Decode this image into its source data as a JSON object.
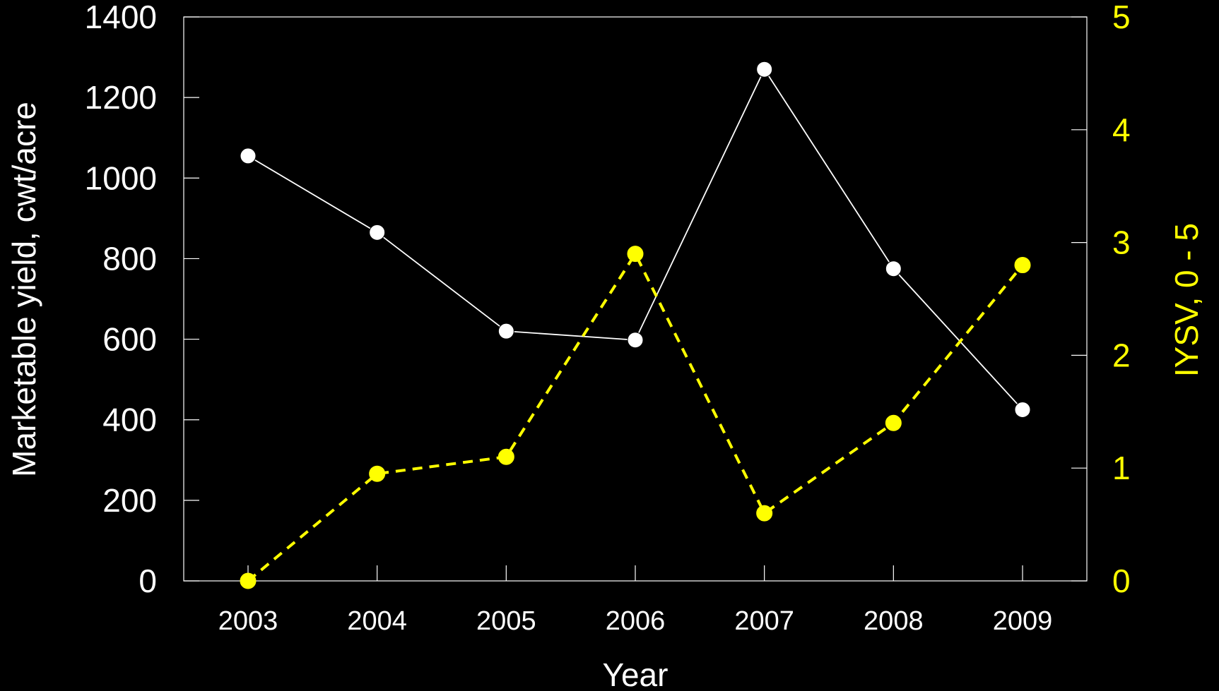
{
  "chart_data": {
    "type": "line",
    "x": [
      2003,
      2004,
      2005,
      2006,
      2007,
      2008,
      2009
    ],
    "x_tick_labels": [
      "2003",
      "2004",
      "2005",
      "2006",
      "2007",
      "2008",
      "2009"
    ],
    "xlabel": "Year",
    "ylabel_left": "Marketable yield, cwt/acre",
    "ylabel_right": "IYSV,  0 - 5",
    "ylim_left": [
      0,
      1400
    ],
    "yticks_left": [
      "0",
      "200",
      "400",
      "600",
      "800",
      "1000",
      "1200",
      "1400"
    ],
    "ylim_right": [
      0,
      5
    ],
    "yticks_right": [
      "0",
      "1",
      "2",
      "3",
      "4",
      "5"
    ],
    "grid": false,
    "series": [
      {
        "axis": "left",
        "color": "#ffffff",
        "line_style": "solid",
        "values": [
          1055,
          865,
          620,
          598,
          1270,
          775,
          425
        ]
      },
      {
        "axis": "right",
        "color": "#ffff00",
        "line_style": "dashed",
        "values": [
          0,
          0.95,
          1.1,
          2.9,
          0.6,
          1.4,
          2.8
        ]
      }
    ],
    "colors": {
      "background": "#000000",
      "frame": "#ffffff",
      "left_axis_text": "#ffffff",
      "right_axis_text": "#ffff00"
    }
  }
}
